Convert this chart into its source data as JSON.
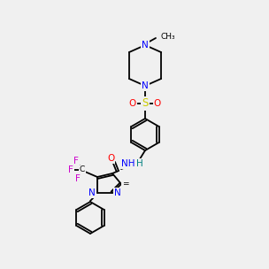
{
  "bg_color": "#f0f0f0",
  "bond_color": "#000000",
  "N_color": "#0000ff",
  "O_color": "#ff0000",
  "S_color": "#cccc00",
  "F_color": "#cc00cc",
  "H_color": "#008080"
}
